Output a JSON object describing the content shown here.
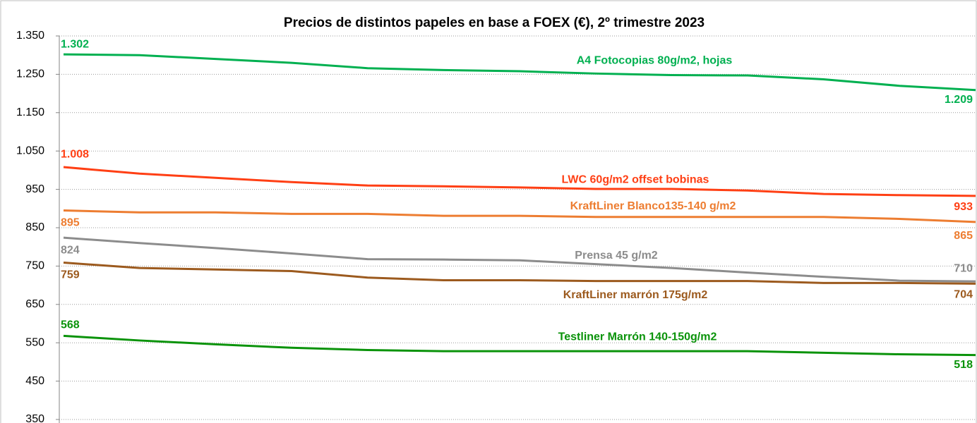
{
  "chart_data": {
    "type": "line",
    "title": "Precios de distintos papeles en base a FOEX (€), 2º trimestre 2023",
    "categories": [
      null,
      null,
      null,
      null,
      null,
      null,
      null,
      null,
      null,
      null,
      null,
      null,
      null
    ],
    "ylim": [
      350,
      1350
    ],
    "yticks": [
      350,
      450,
      550,
      650,
      750,
      850,
      950,
      {
        "value": 1050,
        "label": "1.050"
      },
      {
        "value": 1150,
        "label": "1.150"
      },
      {
        "value": 1250,
        "label": "1.250"
      },
      {
        "value": 1350,
        "label": "1.350"
      }
    ],
    "grid": true,
    "series": [
      {
        "name": "A4 Fotocopias 80g/m2, hojas",
        "color": "#00b050",
        "values": [
          1302,
          1300,
          1290,
          1280,
          1266,
          1261,
          1258,
          1252,
          1248,
          1247,
          1237,
          1220,
          1209
        ],
        "value_labels": [
          "1.302",
          null,
          null,
          null,
          null,
          null,
          null,
          null,
          null,
          null,
          null,
          null,
          "1.209"
        ]
      },
      {
        "name": "LWC 60g/m2 offset bobinas",
        "color": "#ff3f14",
        "values": [
          1008,
          991,
          980,
          969,
          960,
          958,
          955,
          951,
          951,
          947,
          938,
          935,
          933
        ],
        "value_labels": [
          "1.008",
          null,
          null,
          null,
          null,
          null,
          null,
          null,
          null,
          null,
          null,
          null,
          "933"
        ]
      },
      {
        "name": "KraftLiner Blanco135-140 g/m2",
        "color": "#ed7d31",
        "values": [
          895,
          890,
          890,
          886,
          886,
          881,
          881,
          878,
          878,
          878,
          878,
          873,
          865
        ],
        "value_labels": [
          "895",
          null,
          null,
          null,
          null,
          null,
          null,
          null,
          null,
          null,
          null,
          null,
          "865"
        ]
      },
      {
        "name": "Prensa 45 g/m2",
        "color": "#8c8c8c",
        "values": [
          824,
          810,
          797,
          783,
          768,
          767,
          765,
          755,
          745,
          733,
          722,
          712,
          710
        ],
        "value_labels": [
          "824",
          null,
          null,
          null,
          null,
          null,
          null,
          null,
          null,
          null,
          null,
          null,
          "710"
        ]
      },
      {
        "name": "KraftLiner marrón 175g/m2",
        "color": "#9c5a1e",
        "values": [
          759,
          745,
          741,
          737,
          720,
          713,
          713,
          711,
          711,
          711,
          706,
          706,
          704
        ],
        "value_labels": [
          "759",
          null,
          null,
          null,
          null,
          null,
          null,
          null,
          null,
          null,
          null,
          null,
          "704"
        ]
      },
      {
        "name": "Testliner Marrón 140-150g/m2",
        "color": "#0a930a",
        "values": [
          568,
          556,
          546,
          537,
          531,
          528,
          528,
          528,
          528,
          528,
          524,
          520,
          518
        ],
        "value_labels": [
          "568",
          null,
          null,
          null,
          null,
          null,
          null,
          null,
          null,
          null,
          null,
          null,
          "518"
        ]
      }
    ]
  }
}
